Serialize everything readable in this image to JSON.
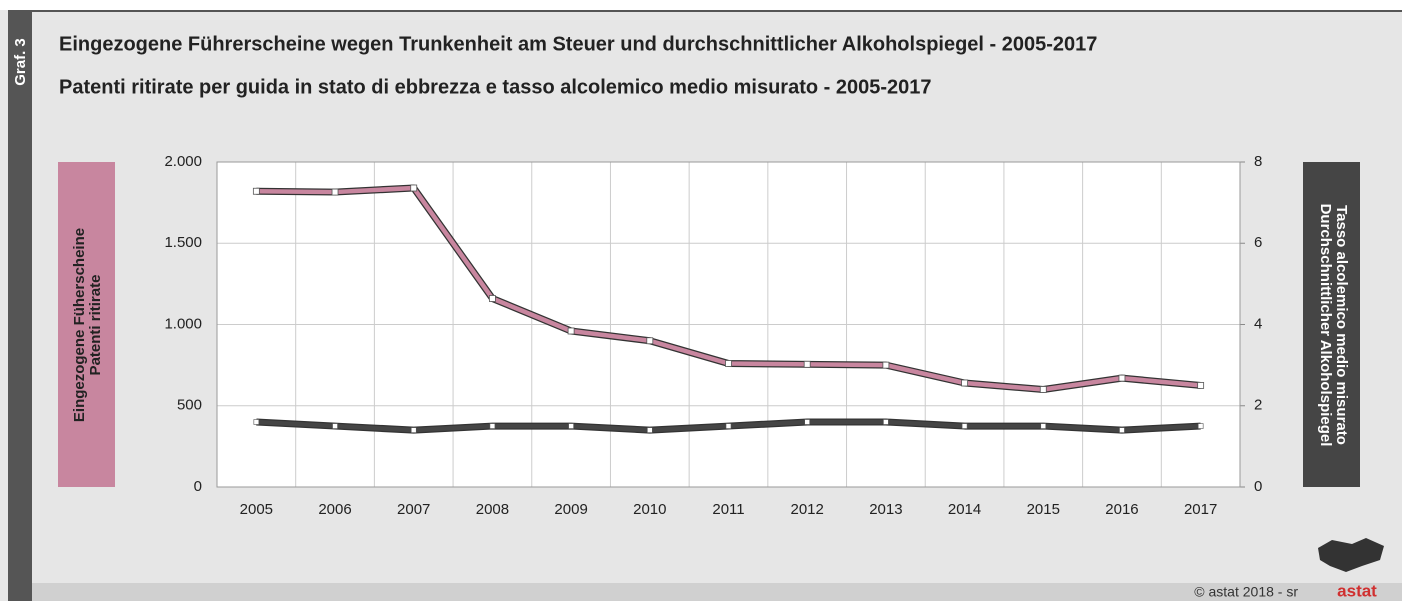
{
  "chart_data": {
    "type": "line",
    "side_label": "Graf. 3",
    "title": "Eingezogene Führerscheine wegen Trunkenheit am Steuer und durchschnittlicher Alkoholspiegel - 2005-2017",
    "subtitle": "Patenti ritirate per guida in stato di ebbrezza e tasso alcolemico medio misurato - 2005-2017",
    "ylabel": [
      "Eingezogene Füherscheine",
      "Patenti ritirate"
    ],
    "y2label": [
      "Durchschnittlicher Alkoholspiegel",
      "Tasso alcolemico medio misurato"
    ],
    "categories": [
      "2005",
      "2006",
      "2007",
      "2008",
      "2009",
      "2010",
      "2011",
      "2012",
      "2013",
      "2014",
      "2015",
      "2016",
      "2017"
    ],
    "series": [
      {
        "color": "#c8869f",
        "values": [
          1820,
          1815,
          1840,
          1160,
          960,
          900,
          760,
          755,
          750,
          640,
          600,
          670,
          625
        ]
      },
      {
        "color": "#454545",
        "axis": "y2",
        "values": [
          1.6,
          1.5,
          1.4,
          1.5,
          1.5,
          1.4,
          1.5,
          1.6,
          1.6,
          1.5,
          1.5,
          1.4,
          1.5
        ]
      }
    ],
    "ylim": [
      0,
      2000
    ],
    "yticks": [
      0,
      500,
      {
        "value": 1000,
        "label": "1.000"
      },
      {
        "value": 1500,
        "label": "1.500"
      },
      {
        "value": 2000,
        "label": "2.000"
      }
    ],
    "y2lim": [
      0,
      8
    ],
    "y2ticks": [
      0,
      2,
      4,
      6,
      8
    ],
    "grid": true,
    "footer": "© astat 2018 - sr",
    "logo": "astat"
  }
}
